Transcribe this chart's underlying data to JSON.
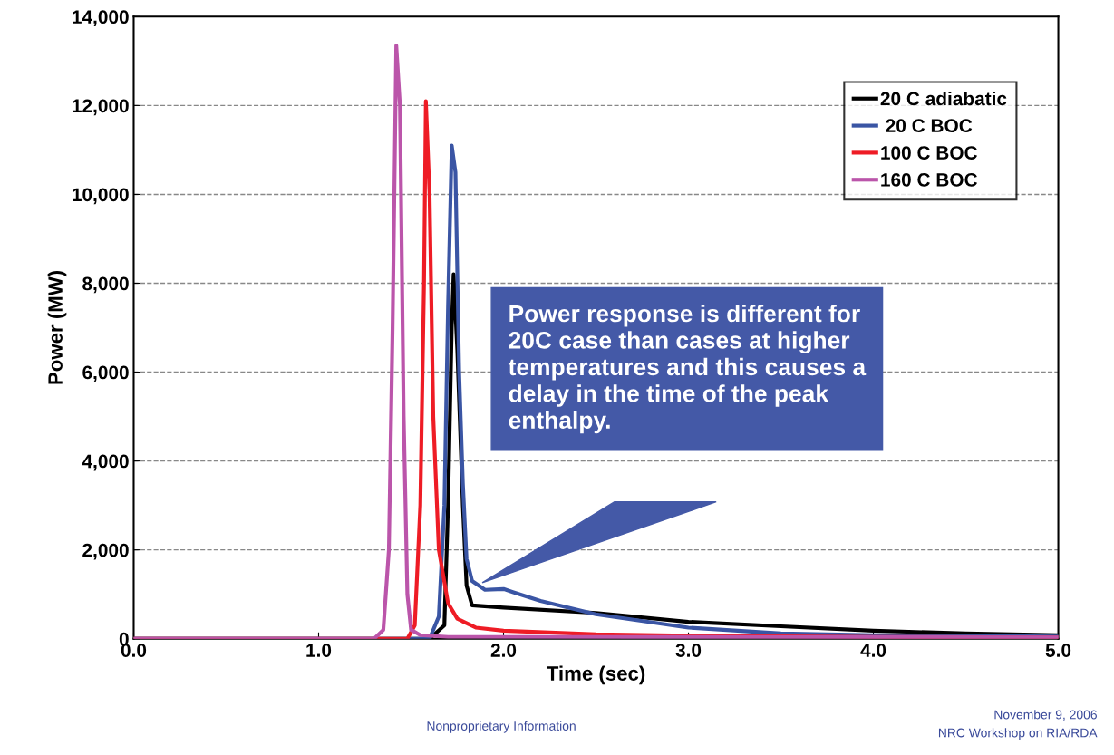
{
  "chart_data": {
    "type": "line",
    "xlabel": "Time (sec)",
    "ylabel": "Power (MW)",
    "xlim": [
      0,
      5
    ],
    "xticks": [
      {
        "value": 0,
        "label": "0.0"
      },
      {
        "value": 1,
        "label": "1.0"
      },
      {
        "value": 2,
        "label": "2.0"
      },
      {
        "value": 3,
        "label": "3.0"
      },
      {
        "value": 4,
        "label": "4.0"
      },
      {
        "value": 5,
        "label": "5.0"
      }
    ],
    "ylim": [
      0,
      14000
    ],
    "yticks": [
      {
        "value": 0,
        "label": "0"
      },
      {
        "value": 2000,
        "label": "2,000"
      },
      {
        "value": 4000,
        "label": "4,000"
      },
      {
        "value": 6000,
        "label": "6,000"
      },
      {
        "value": 8000,
        "label": "8,000"
      },
      {
        "value": 10000,
        "label": "10,000"
      },
      {
        "value": 12000,
        "label": "12,000"
      },
      {
        "value": 14000,
        "label": "14,000"
      }
    ],
    "grid": "y",
    "legend": "top right",
    "line_style": "solid",
    "marker": "none",
    "series": [
      {
        "name": "20 C adiabatic",
        "color": "#000000",
        "x": [
          0,
          1.6,
          1.68,
          1.7,
          1.72,
          1.73,
          1.75,
          1.78,
          1.8,
          1.83,
          2.0,
          2.5,
          3.0,
          3.5,
          4.0,
          4.5,
          5.0
        ],
        "values": [
          0,
          0,
          300,
          3000,
          7000,
          8200,
          6500,
          3000,
          1200,
          750,
          700,
          580,
          380,
          280,
          180,
          120,
          80
        ]
      },
      {
        "name": " 20 C BOC",
        "color": "#3a55a4",
        "x": [
          0,
          1.6,
          1.65,
          1.68,
          1.7,
          1.72,
          1.74,
          1.76,
          1.78,
          1.8,
          1.83,
          1.9,
          2.0,
          2.05,
          2.2,
          2.5,
          3.0,
          3.5,
          4.0,
          5.0
        ],
        "values": [
          0,
          0,
          500,
          3000,
          7500,
          11100,
          10500,
          6000,
          3500,
          1800,
          1300,
          1100,
          1120,
          1050,
          850,
          550,
          250,
          120,
          80,
          50
        ]
      },
      {
        "name": "100 C BOC",
        "color": "#ee1c25",
        "x": [
          0,
          1.48,
          1.52,
          1.55,
          1.57,
          1.58,
          1.6,
          1.62,
          1.65,
          1.7,
          1.75,
          1.85,
          2.0,
          2.5,
          3.0,
          4.0,
          5.0
        ],
        "values": [
          0,
          0,
          300,
          3000,
          8000,
          12100,
          10000,
          5000,
          2000,
          800,
          450,
          250,
          180,
          100,
          70,
          40,
          30
        ]
      },
      {
        "name": "160 C BOC",
        "color": "#bb55aa",
        "x": [
          0,
          1.3,
          1.35,
          1.38,
          1.4,
          1.42,
          1.44,
          1.46,
          1.48,
          1.5,
          1.55,
          1.7,
          5.0
        ],
        "values": [
          0,
          0,
          200,
          2000,
          7000,
          13350,
          12000,
          5000,
          1000,
          200,
          80,
          40,
          30
        ]
      }
    ],
    "annotations": [
      "Power response is different for\n20C case than cases at higher\ntemperatures and this causes a\ndelay in the time of the peak\nenthalpy.",
      "Nonproprietary Information",
      "November 9, 2006",
      "NRC Workshop on RIA/RDA"
    ]
  }
}
